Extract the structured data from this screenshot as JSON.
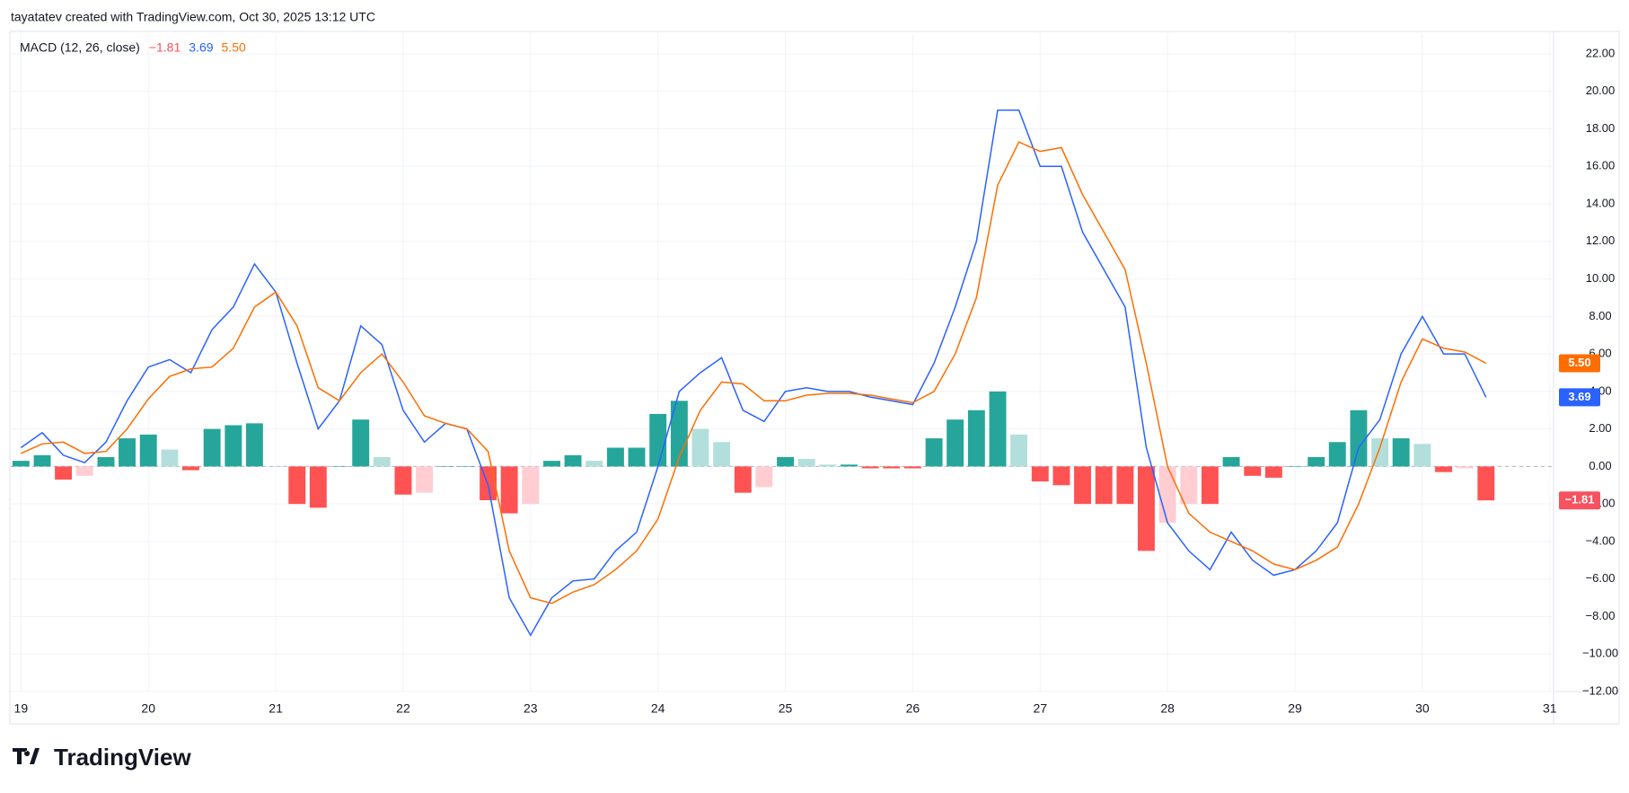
{
  "header": {
    "text": "tayatatev created with TradingView.com, Oct 30, 2025 13:12 UTC"
  },
  "footer": {
    "brand": "TradingView"
  },
  "chart_data": {
    "type": "macd",
    "title": "MACD (12, 26, close)",
    "x": [
      19,
      19.167,
      19.333,
      19.5,
      19.667,
      19.833,
      20,
      20.167,
      20.333,
      20.5,
      20.667,
      20.833,
      21,
      21.167,
      21.333,
      21.5,
      21.667,
      21.833,
      22,
      22.167,
      22.333,
      22.5,
      22.667,
      22.833,
      23,
      23.167,
      23.333,
      23.5,
      23.667,
      23.833,
      24,
      24.167,
      24.333,
      24.5,
      24.667,
      24.833,
      25,
      25.167,
      25.333,
      25.5,
      25.667,
      25.833,
      26,
      26.167,
      26.333,
      26.5,
      26.667,
      26.833,
      27,
      27.167,
      27.333,
      27.5,
      27.667,
      27.833,
      28,
      28.167,
      28.333,
      28.5,
      28.667,
      28.833,
      29,
      29.167,
      29.333,
      29.5,
      29.667,
      29.833,
      30,
      30.167,
      30.333,
      30.5
    ],
    "series": [
      {
        "style": "histogram",
        "color": "#f7525f",
        "last_label": "−1.81",
        "colors": {
          "up_positive": "#26a69a",
          "down_positive": "#b2dfdb",
          "down_negative": "#ff5252",
          "up_negative": "#ffcdd2"
        },
        "values": [
          0.3,
          0.6,
          -0.7,
          -0.5,
          0.5,
          1.5,
          1.7,
          0.9,
          -0.2,
          2.0,
          2.2,
          2.3,
          0,
          -2.0,
          -2.2,
          0,
          2.5,
          0.5,
          -1.5,
          -1.4,
          0,
          0,
          -1.8,
          -2.5,
          -2.0,
          0.3,
          0.6,
          0.3,
          1.0,
          1.0,
          2.8,
          3.5,
          2.0,
          1.3,
          -1.4,
          -1.1,
          0.5,
          0.4,
          0.1,
          0.1,
          -0.1,
          -0.1,
          -0.1,
          1.5,
          2.5,
          3.0,
          4.0,
          1.7,
          -0.8,
          -1.0,
          -2.0,
          -2.0,
          -2.0,
          -4.5,
          -3.0,
          -2.0,
          -2.0,
          0.5,
          -0.5,
          -0.6,
          0,
          0.5,
          1.3,
          3.0,
          1.5,
          1.5,
          1.2,
          -0.3,
          -0.1,
          -1.81
        ]
      },
      {
        "style": "line",
        "color": "#2962ff",
        "last_label": "3.69",
        "values": [
          1.0,
          1.8,
          0.6,
          0.2,
          1.3,
          3.5,
          5.3,
          5.7,
          5.0,
          7.3,
          8.5,
          10.8,
          9.3,
          5.5,
          2.0,
          3.5,
          7.5,
          6.5,
          3.0,
          1.3,
          2.3,
          2.0,
          -1.0,
          -7.0,
          -9.0,
          -7.0,
          -6.1,
          -6.0,
          -4.5,
          -3.5,
          0,
          4.0,
          5.0,
          5.8,
          3.0,
          2.4,
          4.0,
          4.2,
          4.0,
          4.0,
          3.7,
          3.5,
          3.3,
          5.5,
          8.5,
          12.0,
          19.0,
          19.0,
          16.0,
          16.0,
          12.5,
          10.5,
          8.5,
          1.0,
          -3.0,
          -4.5,
          -5.5,
          -3.5,
          -5.0,
          -5.8,
          -5.5,
          -4.5,
          -3.0,
          1.0,
          2.5,
          6.0,
          8.0,
          6.0,
          6.0,
          3.69
        ]
      },
      {
        "style": "line",
        "color": "#ff6d00",
        "last_label": "5.50",
        "values": [
          0.7,
          1.2,
          1.3,
          0.7,
          0.8,
          2.0,
          3.6,
          4.8,
          5.2,
          5.3,
          6.3,
          8.5,
          9.3,
          7.5,
          4.2,
          3.5,
          5.0,
          6.0,
          4.5,
          2.7,
          2.3,
          2.0,
          0.8,
          -4.5,
          -7.0,
          -7.3,
          -6.7,
          -6.3,
          -5.5,
          -4.5,
          -2.8,
          0.5,
          3.0,
          4.5,
          4.4,
          3.5,
          3.5,
          3.8,
          3.9,
          3.9,
          3.8,
          3.6,
          3.4,
          4.0,
          6.0,
          9.0,
          15.0,
          17.3,
          16.8,
          17.0,
          14.5,
          12.5,
          10.5,
          5.5,
          0,
          -2.5,
          -3.5,
          -4.0,
          -4.5,
          -5.2,
          -5.5,
          -5.0,
          -4.3,
          -2.0,
          1.0,
          4.5,
          6.8,
          6.3,
          6.1,
          5.5
        ]
      }
    ],
    "xlim": [
      18.92,
      31.03
    ],
    "xticks": [
      19,
      20,
      21,
      22,
      23,
      24,
      25,
      26,
      27,
      28,
      29,
      30,
      31
    ],
    "ylim": [
      -12,
      23.1
    ],
    "yticks": [
      {
        "value": -12,
        "label": "−12.00"
      },
      {
        "value": -10,
        "label": "−10.00"
      },
      {
        "value": -8,
        "label": "−8.00"
      },
      {
        "value": -6,
        "label": "−6.00"
      },
      {
        "value": -4,
        "label": "−4.00"
      },
      {
        "value": -2,
        "label": "−2.00"
      },
      {
        "value": 0,
        "label": "0.00"
      },
      {
        "value": 2,
        "label": "2.00"
      },
      {
        "value": 4,
        "label": "4.00"
      },
      {
        "value": 6,
        "label": "6.00"
      },
      {
        "value": 8,
        "label": "8.00"
      },
      {
        "value": 10,
        "label": "10.00"
      },
      {
        "value": 12,
        "label": "12.00"
      },
      {
        "value": 14,
        "label": "14.00"
      },
      {
        "value": 16,
        "label": "16.00"
      },
      {
        "value": 18,
        "label": "18.00"
      },
      {
        "value": 20,
        "label": "20.00"
      },
      {
        "value": 22,
        "label": "22.00"
      }
    ],
    "grid": true,
    "zero_line": true
  }
}
